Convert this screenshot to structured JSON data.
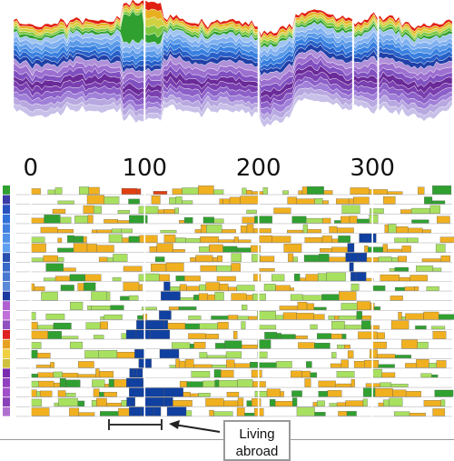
{
  "chart_data": [
    {
      "type": "area",
      "title": "",
      "xlabel": "",
      "ylabel": "",
      "xlim": [
        -15,
        370
      ],
      "stacked": true,
      "series_count": 24,
      "colors": [
        "#c8c0e8",
        "#b8a8e0",
        "#a080d8",
        "#8c60c8",
        "#7a40b0",
        "#6a2a98",
        "#8050c0",
        "#9c70d0",
        "#b090d8",
        "#2040a8",
        "#2860c8",
        "#3880e0",
        "#5a9ae8",
        "#80b0f0",
        "#a0c4f0",
        "#30a030",
        "#80c840",
        "#d0d040",
        "#e8b020",
        "#e02010"
      ],
      "gaps_at": [
        100,
        200,
        283,
        305
      ]
    },
    {
      "type": "heatmap",
      "title": "",
      "x_ticks": [
        "0",
        "100",
        "200",
        "300"
      ],
      "x_tick_values": [
        0,
        100,
        200,
        300
      ],
      "xlim": [
        -15,
        370
      ],
      "rows": 24,
      "row_colors": [
        "#30a030",
        "#3a3aa8",
        "#2850c0",
        "#3070d8",
        "#4080e0",
        "#5090e8",
        "#60a0f0",
        "#2850b0",
        "#3868c8",
        "#4878d0",
        "#5a8ad8",
        "#1a3aa0",
        "#b060d0",
        "#c070d8",
        "#9050c0",
        "#e02020",
        "#e8a020",
        "#f0d040",
        "#d0c040",
        "#7a2ab0",
        "#9040c0",
        "#a050c8",
        "#8a40b8",
        "#b070d0"
      ],
      "palette": {
        "low": "#a8e060",
        "mid": "#f0b020",
        "high": "#30a030",
        "dark": "#1040a0",
        "accent": "#e04010"
      },
      "highlight_blocks": [
        {
          "label": "blue",
          "x_start": 80,
          "x_end": 115,
          "row_start": 14,
          "row_end": 23
        },
        {
          "label": "blue",
          "x_start": 100,
          "x_end": 120,
          "row_start": 10,
          "row_end": 23
        },
        {
          "label": "blue",
          "x_start": 275,
          "x_end": 290,
          "row_start": 4,
          "row_end": 9
        }
      ]
    }
  ],
  "annotation": {
    "line1": "Living",
    "line2": "abroad",
    "range": [
      81,
      120
    ]
  }
}
